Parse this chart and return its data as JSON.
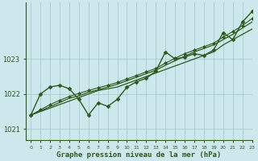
{
  "title": "Graphe pression niveau de la mer (hPa)",
  "bg_color": "#cce8ec",
  "grid_color": "#a8cccc",
  "line_color": "#2d5a1b",
  "marker_color": "#2d5a1b",
  "xlim": [
    -0.5,
    23
  ],
  "ylim": [
    1020.7,
    1024.6
  ],
  "yticks": [
    1021,
    1022,
    1023
  ],
  "xticks": [
    0,
    1,
    2,
    3,
    4,
    5,
    6,
    7,
    8,
    9,
    10,
    11,
    12,
    13,
    14,
    15,
    16,
    17,
    18,
    19,
    20,
    21,
    22,
    23
  ],
  "series": [
    {
      "data": [
        1021.4,
        1022.0,
        1022.2,
        1022.25,
        1022.15,
        1021.85,
        1021.4,
        1021.75,
        1021.65,
        1021.85,
        1022.2,
        1022.35,
        1022.45,
        1022.65,
        1023.2,
        1023.0,
        1023.05,
        1023.15,
        1023.1,
        1023.25,
        1023.75,
        1023.55,
        1024.05,
        1024.35
      ],
      "has_markers": true,
      "linewidth": 1.0,
      "markersize": 2.5
    },
    {
      "data": [
        1021.4,
        1021.5,
        1021.6,
        1021.7,
        1021.8,
        1021.9,
        1022.0,
        1022.1,
        1022.15,
        1022.2,
        1022.3,
        1022.4,
        1022.5,
        1022.6,
        1022.7,
        1022.8,
        1022.9,
        1023.0,
        1023.1,
        1023.2,
        1023.4,
        1023.55,
        1023.7,
        1023.85
      ],
      "has_markers": false,
      "linewidth": 0.9,
      "markersize": 0
    },
    {
      "data": [
        1021.4,
        1021.52,
        1021.64,
        1021.76,
        1021.88,
        1021.95,
        1022.05,
        1022.12,
        1022.2,
        1022.28,
        1022.38,
        1022.48,
        1022.58,
        1022.68,
        1022.82,
        1022.95,
        1023.08,
        1023.2,
        1023.3,
        1023.4,
        1023.55,
        1023.7,
        1023.88,
        1024.05
      ],
      "has_markers": false,
      "linewidth": 0.9,
      "markersize": 0
    },
    {
      "data": [
        1021.4,
        1021.55,
        1021.7,
        1021.82,
        1021.93,
        1022.02,
        1022.1,
        1022.18,
        1022.25,
        1022.33,
        1022.43,
        1022.53,
        1022.63,
        1022.73,
        1022.88,
        1023.02,
        1023.15,
        1023.25,
        1023.35,
        1023.45,
        1023.62,
        1023.78,
        1023.95,
        1024.15
      ],
      "has_markers": true,
      "linewidth": 0.8,
      "markersize": 2.0
    }
  ]
}
